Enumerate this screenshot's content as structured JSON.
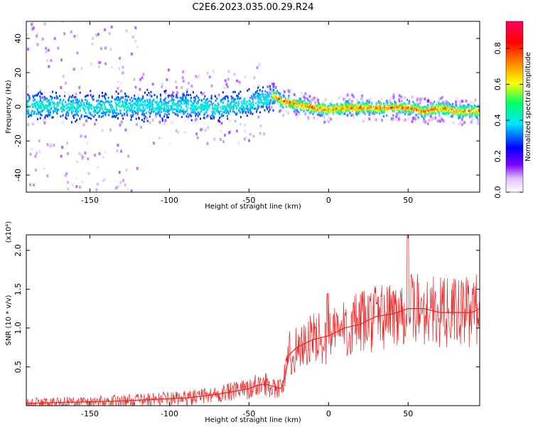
{
  "title": "C2E6.2023.035.00.29.R24",
  "chart_data": [
    {
      "type": "heatmap",
      "xlabel": "Height of straight line (km)",
      "ylabel": "Frequency (Hz)",
      "xlim": [
        -190,
        95
      ],
      "ylim": [
        -50,
        50
      ],
      "x_ticks": [
        -150,
        -100,
        -50,
        0,
        50
      ],
      "y_ticks": [
        -40,
        -20,
        0,
        20,
        40
      ],
      "colorbar": {
        "label": "Normalized spectral amplitude",
        "range": [
          0.0,
          0.95
        ],
        "ticks": [
          "0.0",
          "0.2",
          "0.4",
          "0.6",
          "0.8"
        ],
        "tick_values": [
          0.0,
          0.2,
          0.4,
          0.6,
          0.8
        ],
        "colors": [
          "#ffffff",
          "#d9b3ff",
          "#8000ff",
          "#0000ff",
          "#00e5ff",
          "#00ff66",
          "#ffff00",
          "#ff8000",
          "#ff0000",
          "#ff0066"
        ]
      },
      "ridge": {
        "x": [
          -190,
          -170,
          -150,
          -130,
          -110,
          -90,
          -70,
          -60,
          -50,
          -40,
          -35,
          -30,
          -20,
          -10,
          0,
          10,
          20,
          30,
          40,
          50,
          60,
          70,
          80,
          95
        ],
        "y": [
          1,
          1,
          0,
          1,
          1,
          1,
          0,
          1,
          3,
          5,
          7,
          4,
          2,
          0,
          -1,
          0,
          0,
          0,
          0,
          0,
          -2,
          0,
          -2,
          -2
        ]
      }
    },
    {
      "type": "line",
      "xlabel": "Height of straight line (km)",
      "ylabel": "SNR (10 * v/v)",
      "y_multiplier": "(x10⁴)",
      "xlim": [
        -190,
        95
      ],
      "ylim": [
        0.0,
        2.2
      ],
      "x_ticks": [
        -150,
        -100,
        -50,
        0,
        50
      ],
      "y_ticks": [
        0.5,
        1.0,
        1.5,
        2.0
      ],
      "y_tick_labels": [
        "0.5",
        "1.0",
        "1.5",
        "2.0"
      ],
      "series": [
        {
          "color": "#ee2222",
          "x": [
            -190,
            -170,
            -150,
            -130,
            -110,
            -90,
            -80,
            -70,
            -60,
            -50,
            -45,
            -40,
            -35,
            -30,
            -27,
            -25,
            -20,
            -10,
            0,
            10,
            20,
            30,
            40,
            50,
            60,
            70,
            80,
            90,
            95
          ],
          "y": [
            0.03,
            0.04,
            0.05,
            0.06,
            0.08,
            0.1,
            0.12,
            0.15,
            0.18,
            0.22,
            0.26,
            0.28,
            0.25,
            0.22,
            0.4,
            0.65,
            0.75,
            0.85,
            0.9,
            1.0,
            1.05,
            1.15,
            1.18,
            1.25,
            1.25,
            1.2,
            1.2,
            1.2,
            1.25
          ]
        }
      ]
    }
  ]
}
